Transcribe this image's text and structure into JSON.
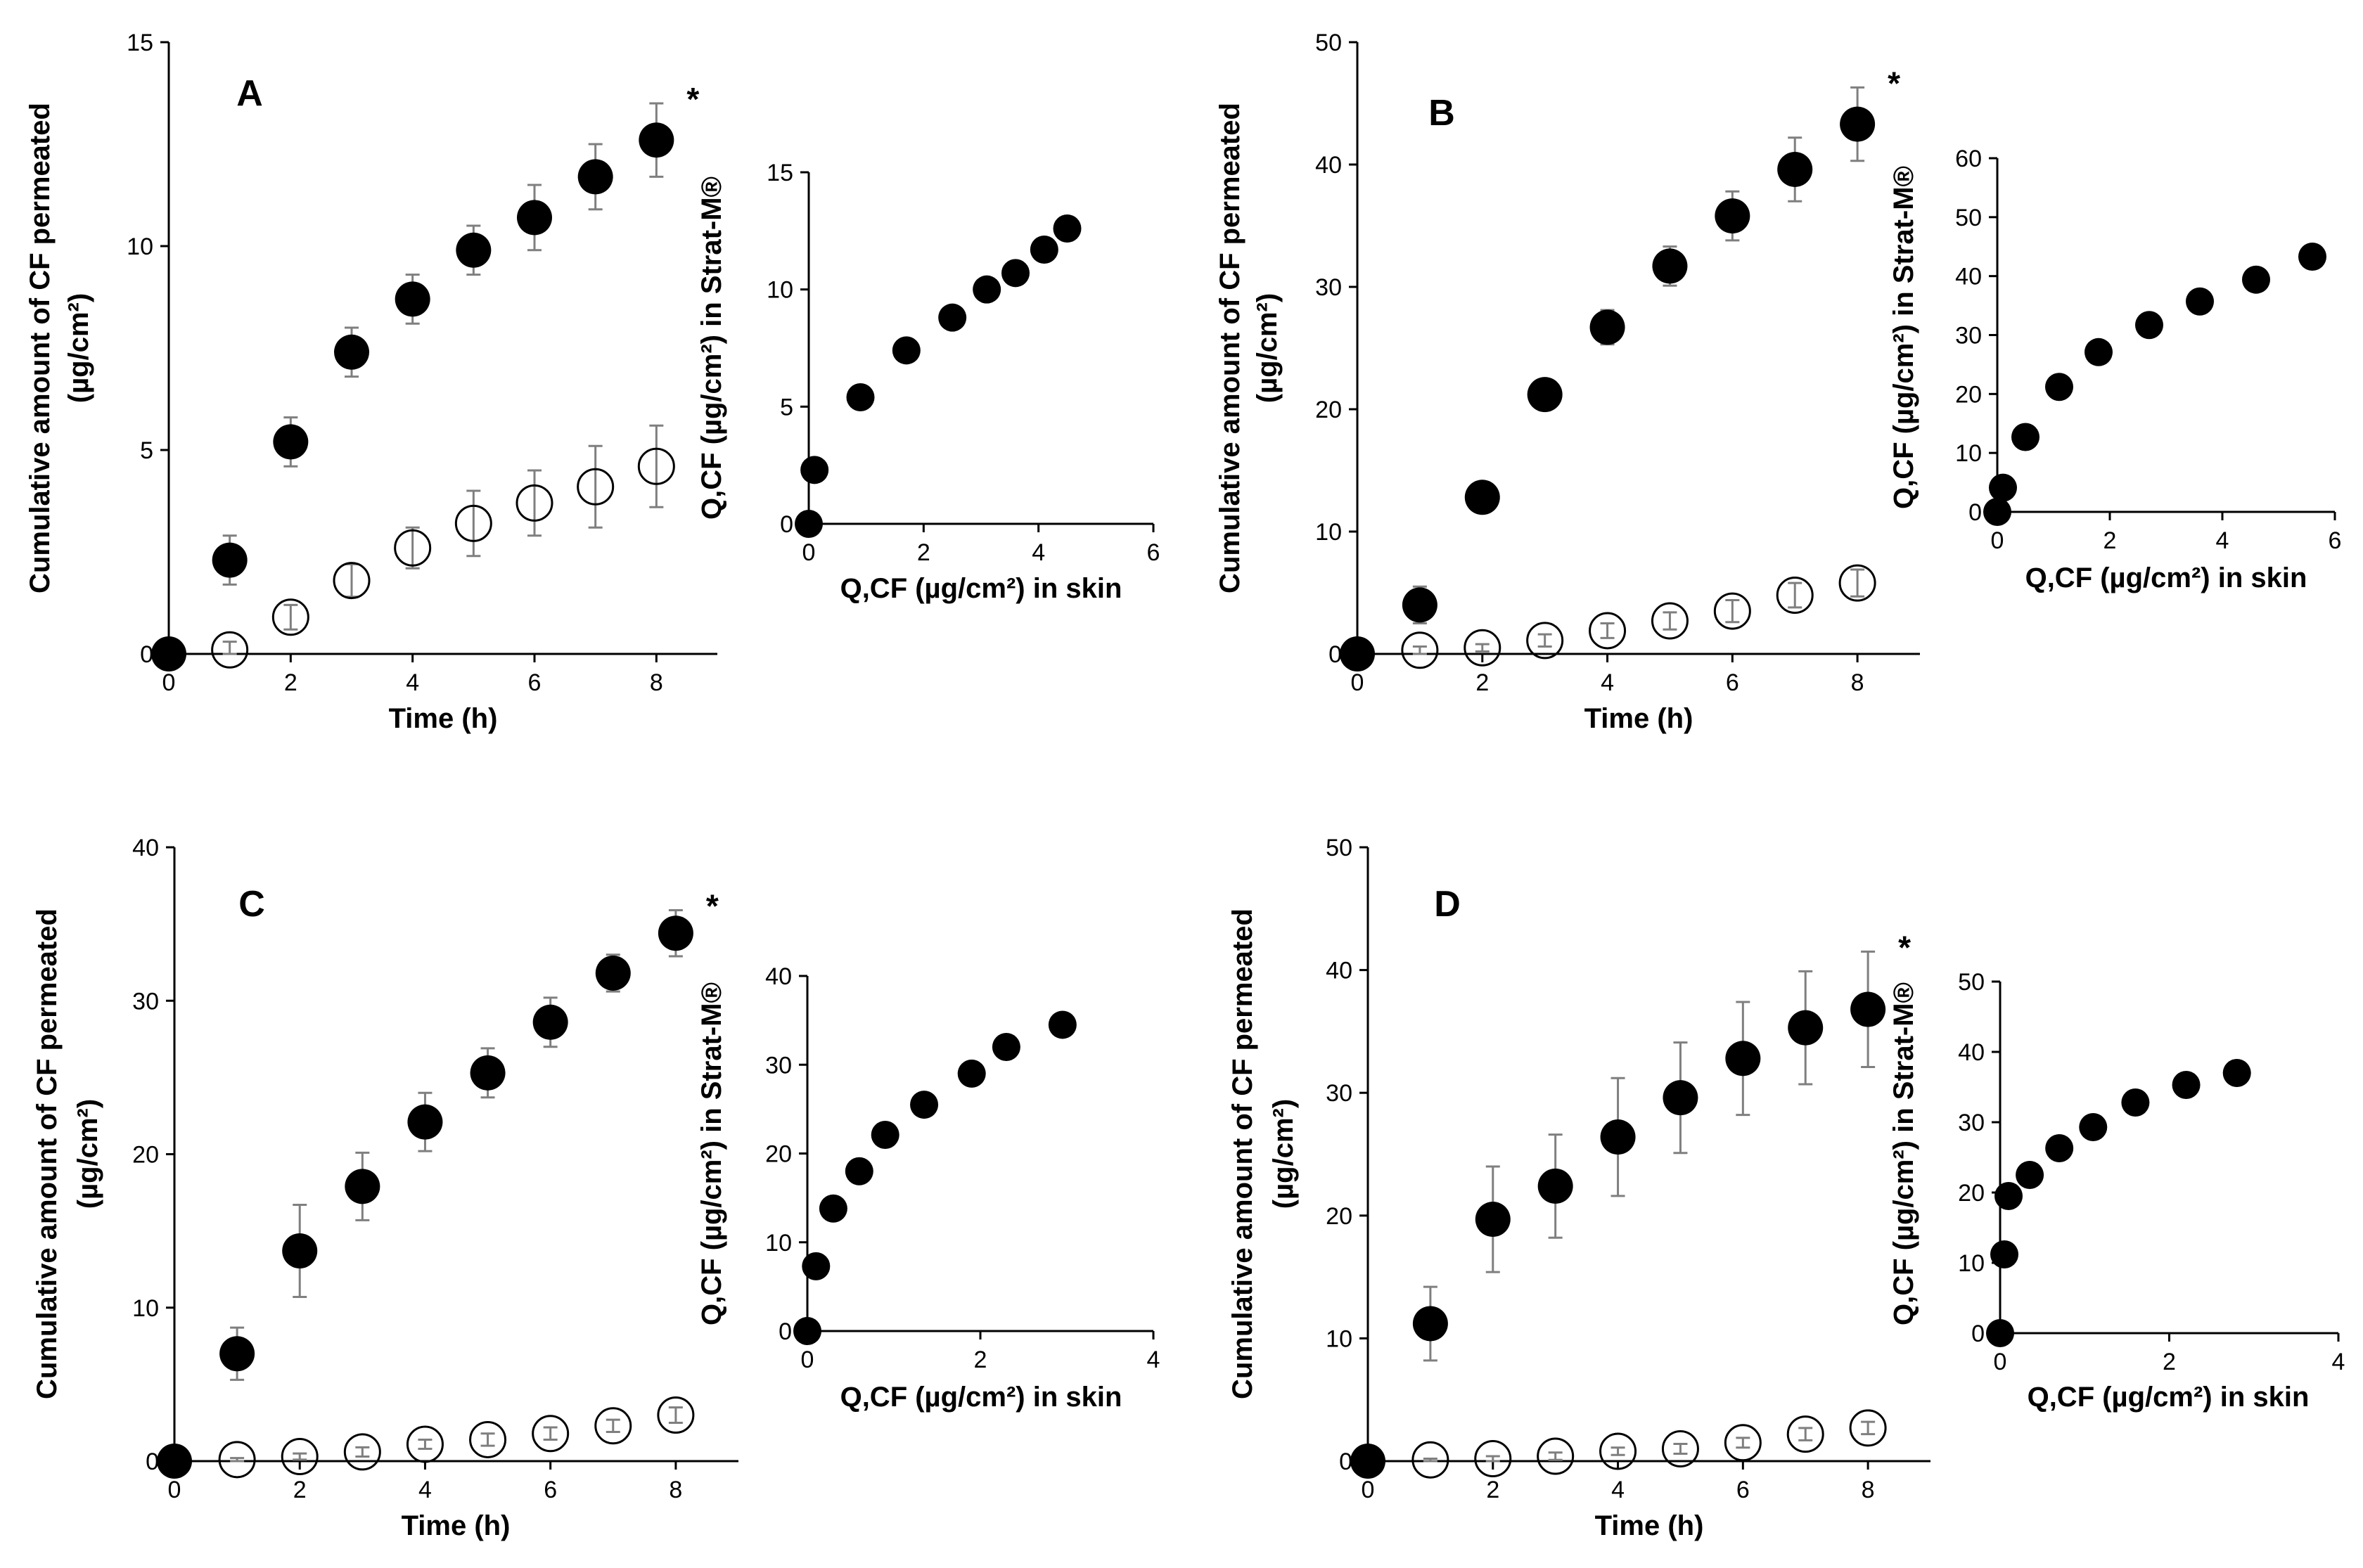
{
  "chart_data": [
    {
      "type": "scatter",
      "panel": "A",
      "title": "",
      "xlabel": "Time (h)",
      "ylabel_line1": "Cumulative amount of CF permeated",
      "ylabel_line2": "(µg/cm²)",
      "xlim": [
        0,
        9
      ],
      "ylim": [
        0,
        15
      ],
      "xticks": [
        "0",
        "2",
        "4",
        "6",
        "8"
      ],
      "yticks": [
        "0",
        "5",
        "10",
        "15"
      ],
      "significance": "*",
      "series": [
        {
          "name": "filled",
          "marker": "filled-circle",
          "x": [
            0,
            1,
            2,
            3,
            4,
            5,
            6,
            7,
            8
          ],
          "y": [
            0,
            2.3,
            5.2,
            7.4,
            8.7,
            9.9,
            10.7,
            11.7,
            12.6
          ],
          "err": [
            0,
            0.6,
            0.6,
            0.6,
            0.6,
            0.6,
            0.8,
            0.8,
            0.9
          ]
        },
        {
          "name": "open",
          "marker": "open-circle",
          "x": [
            1,
            2,
            3,
            4,
            5,
            6,
            7,
            8
          ],
          "y": [
            0.1,
            0.9,
            1.8,
            2.6,
            3.2,
            3.7,
            4.1,
            4.6
          ],
          "err": [
            0.2,
            0.3,
            0.4,
            0.5,
            0.8,
            0.8,
            1.0,
            1.0
          ]
        }
      ],
      "inset": {
        "xlabel": "Q,CF (µg/cm²) in skin",
        "ylabel": "Q,CF (µg/cm²) in Strat-M®",
        "xlim": [
          0,
          6
        ],
        "ylim": [
          0,
          15
        ],
        "xticks": [
          "0",
          "2",
          "4",
          "6"
        ],
        "yticks": [
          "0",
          "5",
          "10",
          "15"
        ],
        "x": [
          0,
          0.1,
          0.9,
          1.7,
          2.5,
          3.1,
          3.6,
          4.1,
          4.5
        ],
        "y": [
          0,
          2.3,
          5.4,
          7.4,
          8.8,
          10.0,
          10.7,
          11.7,
          12.6
        ]
      }
    },
    {
      "type": "scatter",
      "panel": "B",
      "title": "",
      "xlabel": "Time (h)",
      "ylabel_line1": "Cumulative amount of CF permeated",
      "ylabel_line2": "(µg/cm²)",
      "xlim": [
        0,
        9
      ],
      "ylim": [
        0,
        50
      ],
      "xticks": [
        "0",
        "2",
        "4",
        "6",
        "8"
      ],
      "yticks": [
        "0",
        "10",
        "20",
        "30",
        "40",
        "50"
      ],
      "significance": "*",
      "series": [
        {
          "name": "filled",
          "marker": "filled-circle",
          "x": [
            0,
            1,
            2,
            3,
            4,
            5,
            6,
            7,
            8
          ],
          "y": [
            0,
            4.0,
            12.8,
            21.2,
            26.7,
            31.7,
            35.8,
            39.6,
            43.3
          ],
          "err": [
            0,
            1.5,
            0.7,
            0.8,
            1.4,
            1.6,
            2.0,
            2.6,
            3.0
          ]
        },
        {
          "name": "open",
          "marker": "open-circle",
          "x": [
            1,
            2,
            3,
            4,
            5,
            6,
            7,
            8
          ],
          "y": [
            0.3,
            0.5,
            1.1,
            1.9,
            2.7,
            3.5,
            4.8,
            5.8
          ],
          "err": [
            0.3,
            0.3,
            0.5,
            0.6,
            0.7,
            0.9,
            1.0,
            1.1
          ]
        }
      ],
      "inset": {
        "xlabel": "Q,CF (µg/cm²) in skin",
        "ylabel": "Q,CF (µg/cm²) in Strat-M®",
        "xlim": [
          0,
          6
        ],
        "ylim": [
          0,
          60
        ],
        "xticks": [
          "0",
          "2",
          "4",
          "6"
        ],
        "yticks": [
          "0",
          "10",
          "20",
          "30",
          "40",
          "50",
          "60"
        ],
        "x": [
          0,
          0.1,
          0.5,
          1.1,
          1.8,
          2.7,
          3.6,
          4.6,
          5.6
        ],
        "y": [
          0,
          4.1,
          12.7,
          21.2,
          27.1,
          31.7,
          35.7,
          39.4,
          43.3
        ]
      }
    },
    {
      "type": "scatter",
      "panel": "C",
      "title": "",
      "xlabel": "Time (h)",
      "ylabel_line1": "Cumulative amount of CF permeated",
      "ylabel_line2": "(µg/cm²)",
      "xlim": [
        0,
        9
      ],
      "ylim": [
        0,
        40
      ],
      "xticks": [
        "0",
        "2",
        "4",
        "6",
        "8"
      ],
      "yticks": [
        "0",
        "10",
        "20",
        "30",
        "40"
      ],
      "significance": "*",
      "series": [
        {
          "name": "filled",
          "marker": "filled-circle",
          "x": [
            0,
            1,
            2,
            3,
            4,
            5,
            6,
            7,
            8
          ],
          "y": [
            0,
            7.0,
            13.7,
            17.9,
            22.1,
            25.3,
            28.6,
            31.8,
            34.4
          ],
          "err": [
            0,
            1.7,
            3.0,
            2.2,
            1.9,
            1.6,
            1.6,
            1.2,
            1.5
          ]
        },
        {
          "name": "open",
          "marker": "open-circle",
          "x": [
            1,
            2,
            3,
            4,
            5,
            6,
            7,
            8
          ],
          "y": [
            0.1,
            0.3,
            0.6,
            1.1,
            1.4,
            1.8,
            2.3,
            3.0
          ],
          "err": [
            0.1,
            0.2,
            0.3,
            0.3,
            0.4,
            0.4,
            0.4,
            0.5
          ]
        }
      ],
      "inset": {
        "xlabel": "Q,CF (µg/cm²) in skin",
        "ylabel": "Q,CF (µg/cm²) in Strat-M®",
        "xlim": [
          0,
          4
        ],
        "ylim": [
          0,
          40
        ],
        "xticks": [
          "0",
          "2",
          "4"
        ],
        "yticks": [
          "0",
          "10",
          "20",
          "30",
          "40"
        ],
        "x": [
          0,
          0.1,
          0.3,
          0.6,
          0.9,
          1.35,
          1.9,
          2.3,
          2.95
        ],
        "y": [
          0,
          7.3,
          13.8,
          18.0,
          22.1,
          25.5,
          29.0,
          32.0,
          34.5
        ]
      }
    },
    {
      "type": "scatter",
      "panel": "D",
      "title": "",
      "xlabel": "Time (h)",
      "ylabel_line1": "Cumulative amount of CF permeated",
      "ylabel_line2": "(µg/cm²)",
      "xlim": [
        0,
        9
      ],
      "ylim": [
        0,
        50
      ],
      "xticks": [
        "0",
        "2",
        "4",
        "6",
        "8"
      ],
      "yticks": [
        "0",
        "10",
        "20",
        "30",
        "40",
        "50"
      ],
      "significance": "*",
      "series": [
        {
          "name": "filled",
          "marker": "filled-circle",
          "x": [
            0,
            1,
            2,
            3,
            4,
            5,
            6,
            7,
            8
          ],
          "y": [
            0,
            11.2,
            19.7,
            22.4,
            26.4,
            29.6,
            32.8,
            35.3,
            36.8
          ],
          "err": [
            0,
            3.0,
            4.3,
            4.2,
            4.8,
            4.5,
            4.6,
            4.6,
            4.7
          ]
        },
        {
          "name": "open",
          "marker": "open-circle",
          "x": [
            1,
            2,
            3,
            4,
            5,
            6,
            7,
            8
          ],
          "y": [
            0.1,
            0.2,
            0.4,
            0.8,
            1.0,
            1.5,
            2.2,
            2.7
          ],
          "err": [
            0.1,
            0.2,
            0.3,
            0.3,
            0.4,
            0.4,
            0.5,
            0.5
          ]
        }
      ],
      "inset": {
        "xlabel": "Q,CF (µg/cm²) in skin",
        "ylabel": "Q,CF (µg/cm²) in Strat-M®",
        "xlim": [
          0,
          4
        ],
        "ylim": [
          0,
          50
        ],
        "xticks": [
          "0",
          "2",
          "4"
        ],
        "yticks": [
          "0",
          "10",
          "20",
          "30",
          "40",
          "50"
        ],
        "x": [
          0,
          0.05,
          0.1,
          0.35,
          0.7,
          1.1,
          1.6,
          2.2,
          2.8
        ],
        "y": [
          0,
          11.2,
          19.5,
          22.5,
          26.3,
          29.3,
          32.8,
          35.3,
          37.0
        ]
      }
    }
  ]
}
